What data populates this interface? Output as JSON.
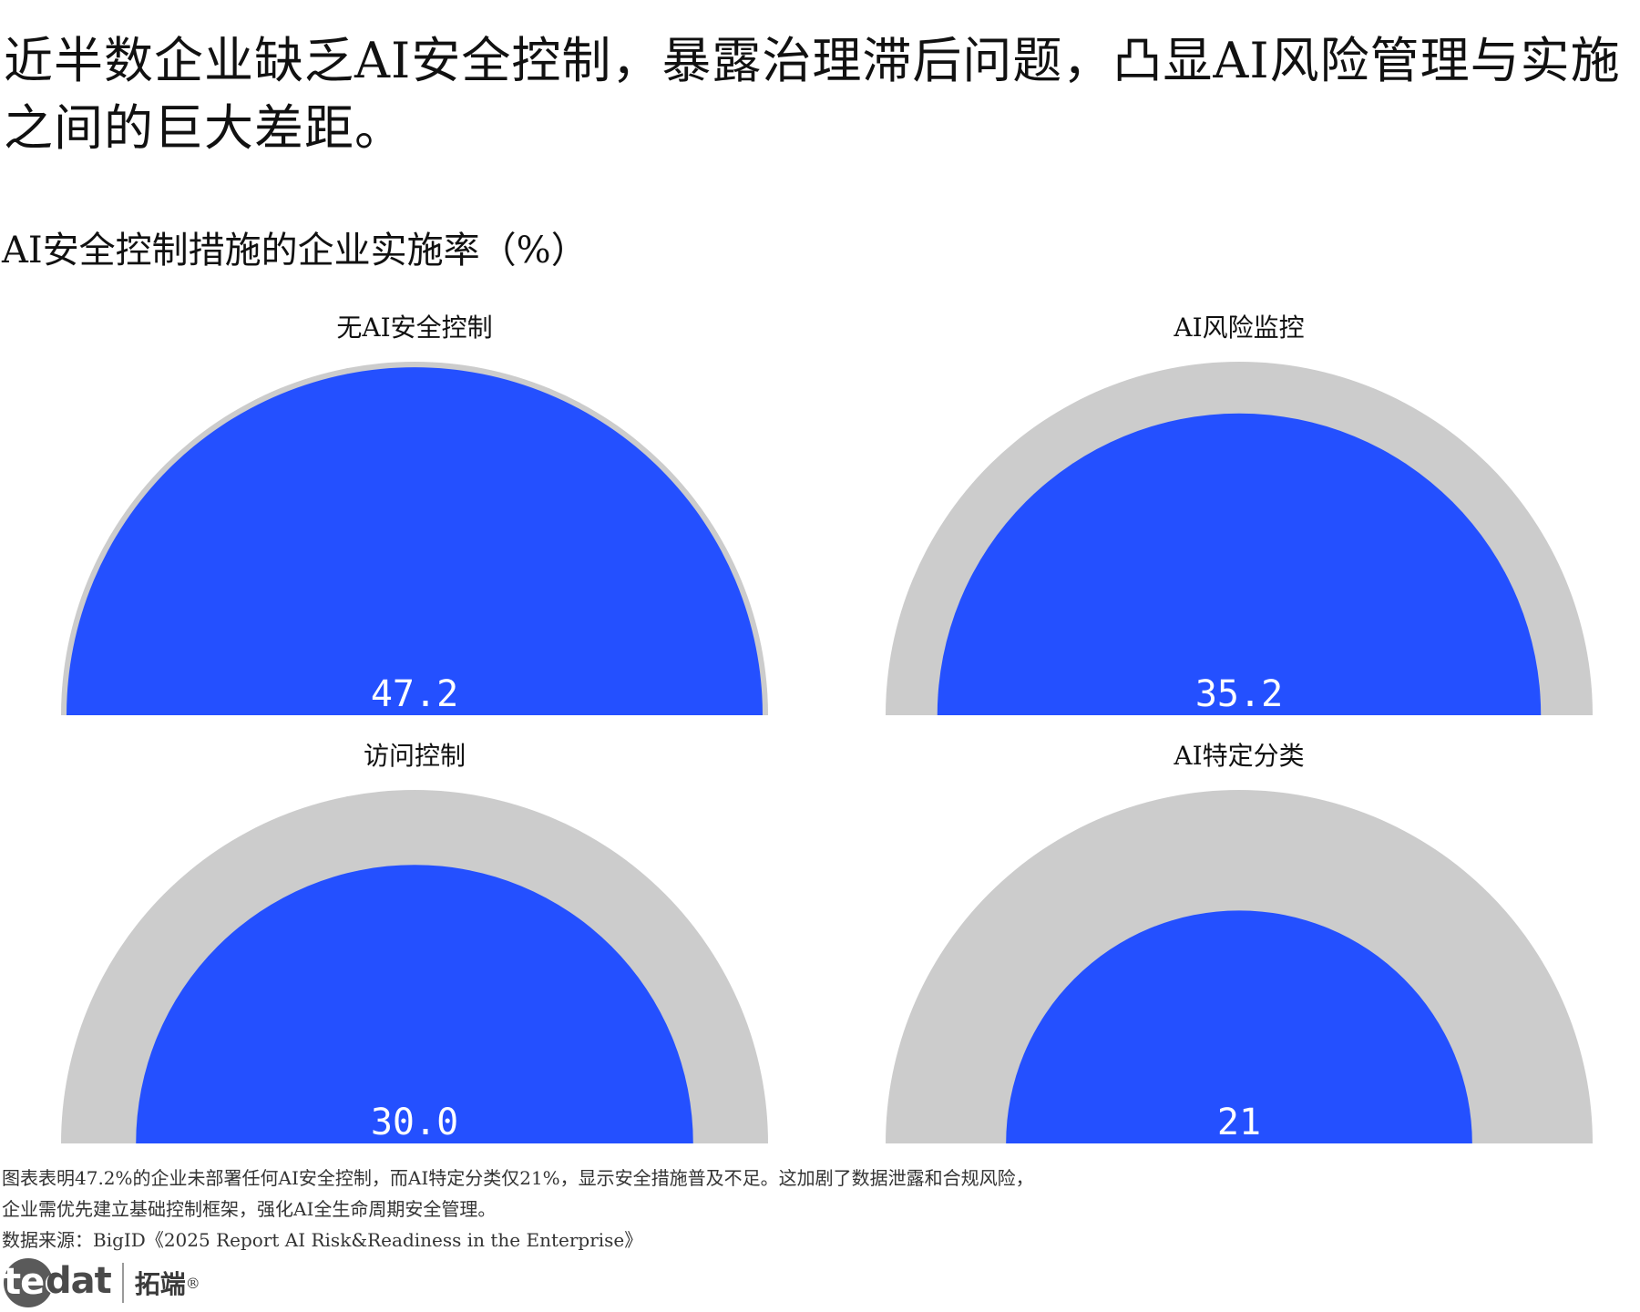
{
  "headline": "近半数企业缺乏AI安全控制，暴露治理滞后问题，凸显AI风险管理与实施之间的巨大差距。",
  "subtitle": "AI安全控制措施的企业实施率（%）",
  "chart_data": {
    "type": "gauge",
    "title": "AI安全控制措施的企业实施率（%）",
    "max": 100,
    "colors": {
      "value": "#2450ff",
      "track": "#cccccc"
    },
    "gauges": [
      {
        "label": "无AI安全控制",
        "value": 47.2,
        "display": "47.2"
      },
      {
        "label": "AI风险监控",
        "value": 35.2,
        "display": "35.2"
      },
      {
        "label": "访问控制",
        "value": 30.0,
        "display": "30.0"
      },
      {
        "label": "AI特定分类",
        "value": 21,
        "display": "21"
      }
    ]
  },
  "footer": {
    "note_line1": "图表表明47.2%的企业未部署任何AI安全控制，而AI特定分类仅21%，显示安全措施普及不足。这加剧了数据泄露和合规风险，",
    "note_line2": "企业需优先建立基础控制框架，强化AI全生命周期安全管理。",
    "source": "数据来源：BigID《2025 Report AI Risk&Readiness in the Enterprise》"
  },
  "logo": {
    "brand_prefix": "tec",
    "brand_suffix": "dat",
    "brand_cn": "拓端",
    "registered": "®"
  }
}
